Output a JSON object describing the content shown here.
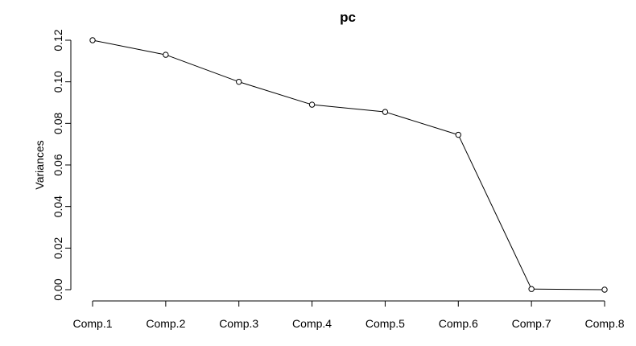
{
  "chart_data": {
    "type": "line",
    "title": "pc",
    "xlabel": "",
    "ylabel": "Variances",
    "categories": [
      "Comp.1",
      "Comp.2",
      "Comp.3",
      "Comp.4",
      "Comp.5",
      "Comp.6",
      "Comp.7",
      "Comp.8"
    ],
    "values": [
      0.12,
      0.113,
      0.1,
      0.089,
      0.0855,
      0.0745,
      0.0003,
      0.0
    ],
    "yticks": [
      "0.00",
      "0.02",
      "0.04",
      "0.06",
      "0.08",
      "0.10",
      "0.12"
    ],
    "ylim": [
      0,
      0.12
    ],
    "grid": false,
    "markers": "open-circle",
    "line_color": "#000000"
  }
}
